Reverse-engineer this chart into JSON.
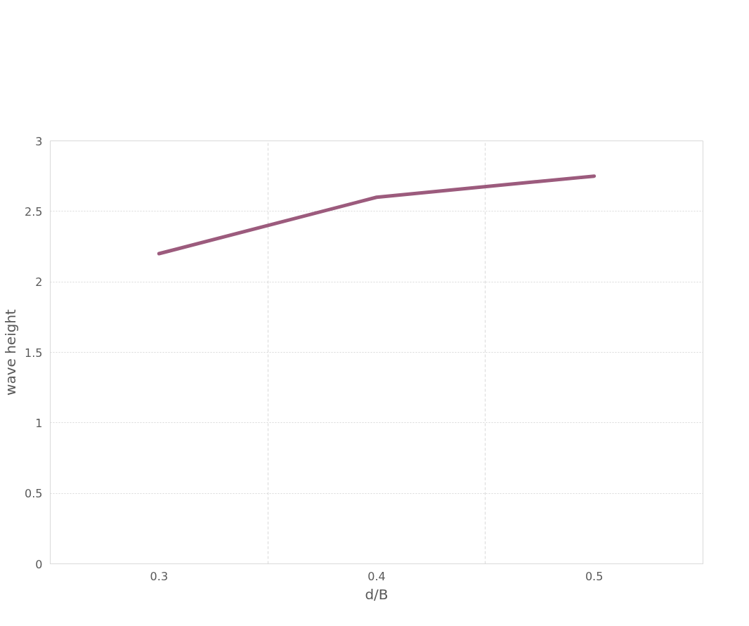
{
  "chart_data": {
    "type": "line",
    "xlabel": "d/B",
    "ylabel": "wave height",
    "categories": [
      "0.3",
      "0.4",
      "0.5"
    ],
    "series": [
      {
        "color": "#9c5b7d",
        "values": [
          2.2,
          2.6,
          2.75
        ]
      }
    ],
    "ylim": [
      0,
      3
    ],
    "yticks": [
      0,
      0.5,
      1,
      1.5,
      2,
      2.5,
      3
    ],
    "grid": true,
    "marker": "none",
    "line_style": "solid"
  }
}
